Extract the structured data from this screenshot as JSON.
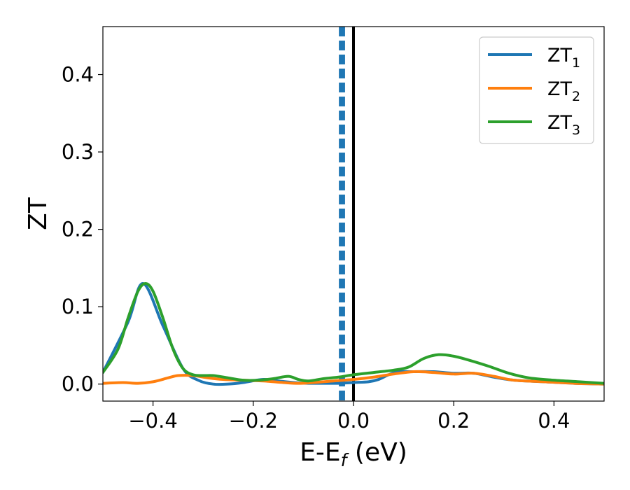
{
  "chart_data": {
    "type": "line",
    "xlabel": "E-E",
    "xlabel_sub": "f",
    "xlabel_unit": " (eV)",
    "ylabel": "ZT",
    "xlim": [
      -0.5,
      0.5
    ],
    "ylim": [
      -0.022,
      0.462
    ],
    "xticks": [
      -0.4,
      -0.2,
      0.0,
      0.2,
      0.4
    ],
    "xtick_labels": [
      "−0.4",
      "−0.2",
      "0.0",
      "0.2",
      "0.4"
    ],
    "yticks": [
      0.0,
      0.1,
      0.2,
      0.3,
      0.4
    ],
    "ytick_labels": [
      "0.0",
      "0.1",
      "0.2",
      "0.3",
      "0.4"
    ],
    "legend_position": "top-right",
    "grid": false,
    "vlines": [
      {
        "x": -0.026,
        "color": "#1f77b4",
        "style": "dashed"
      },
      {
        "x": -0.02,
        "color": "#1f77b4",
        "style": "dashed"
      },
      {
        "x": 0.0,
        "color": "#000000",
        "style": "solid"
      }
    ],
    "series": [
      {
        "name": "ZT",
        "sub": "1",
        "color": "#1f77b4",
        "x": [
          -0.5,
          -0.45,
          -0.42,
          -0.38,
          -0.34,
          -0.31,
          -0.28,
          -0.25,
          -0.22,
          -0.18,
          -0.15,
          -0.12,
          -0.09,
          -0.06,
          -0.03,
          0.0,
          0.03,
          0.05,
          0.07,
          0.09,
          0.12,
          0.16,
          0.2,
          0.24,
          0.28,
          0.32,
          0.38,
          0.44,
          0.5
        ],
        "y": [
          0.015,
          0.08,
          0.13,
          0.075,
          0.02,
          0.005,
          0.0,
          0.0,
          0.002,
          0.006,
          0.004,
          0.002,
          0.001,
          0.001,
          0.001,
          0.002,
          0.003,
          0.006,
          0.012,
          0.016,
          0.016,
          0.016,
          0.014,
          0.014,
          0.009,
          0.005,
          0.003,
          0.001,
          0.0
        ]
      },
      {
        "name": "ZT",
        "sub": "2",
        "color": "#ff7f0e",
        "x": [
          -0.5,
          -0.46,
          -0.43,
          -0.4,
          -0.37,
          -0.35,
          -0.32,
          -0.29,
          -0.26,
          -0.22,
          -0.18,
          -0.14,
          -0.11,
          -0.08,
          -0.04,
          0.0,
          0.04,
          0.08,
          0.12,
          0.16,
          0.2,
          0.24,
          0.28,
          0.32,
          0.38,
          0.44,
          0.5
        ],
        "y": [
          0.001,
          0.002,
          0.001,
          0.003,
          0.008,
          0.011,
          0.011,
          0.008,
          0.006,
          0.005,
          0.004,
          0.002,
          0.001,
          0.002,
          0.004,
          0.006,
          0.009,
          0.013,
          0.016,
          0.015,
          0.013,
          0.014,
          0.01,
          0.005,
          0.003,
          0.001,
          0.0
        ]
      },
      {
        "name": "ZT",
        "sub": "3",
        "color": "#2ca02c",
        "x": [
          -0.5,
          -0.47,
          -0.45,
          -0.43,
          -0.415,
          -0.4,
          -0.38,
          -0.36,
          -0.34,
          -0.32,
          -0.3,
          -0.28,
          -0.25,
          -0.22,
          -0.19,
          -0.16,
          -0.13,
          -0.11,
          -0.09,
          -0.06,
          -0.03,
          0.0,
          0.04,
          0.08,
          0.11,
          0.14,
          0.17,
          0.2,
          0.23,
          0.27,
          0.31,
          0.35,
          0.4,
          0.45,
          0.5
        ],
        "y": [
          0.015,
          0.045,
          0.085,
          0.12,
          0.13,
          0.12,
          0.085,
          0.045,
          0.02,
          0.012,
          0.011,
          0.011,
          0.008,
          0.005,
          0.005,
          0.007,
          0.01,
          0.006,
          0.004,
          0.007,
          0.009,
          0.012,
          0.015,
          0.018,
          0.022,
          0.033,
          0.038,
          0.036,
          0.031,
          0.023,
          0.014,
          0.008,
          0.005,
          0.003,
          0.001
        ]
      }
    ]
  }
}
